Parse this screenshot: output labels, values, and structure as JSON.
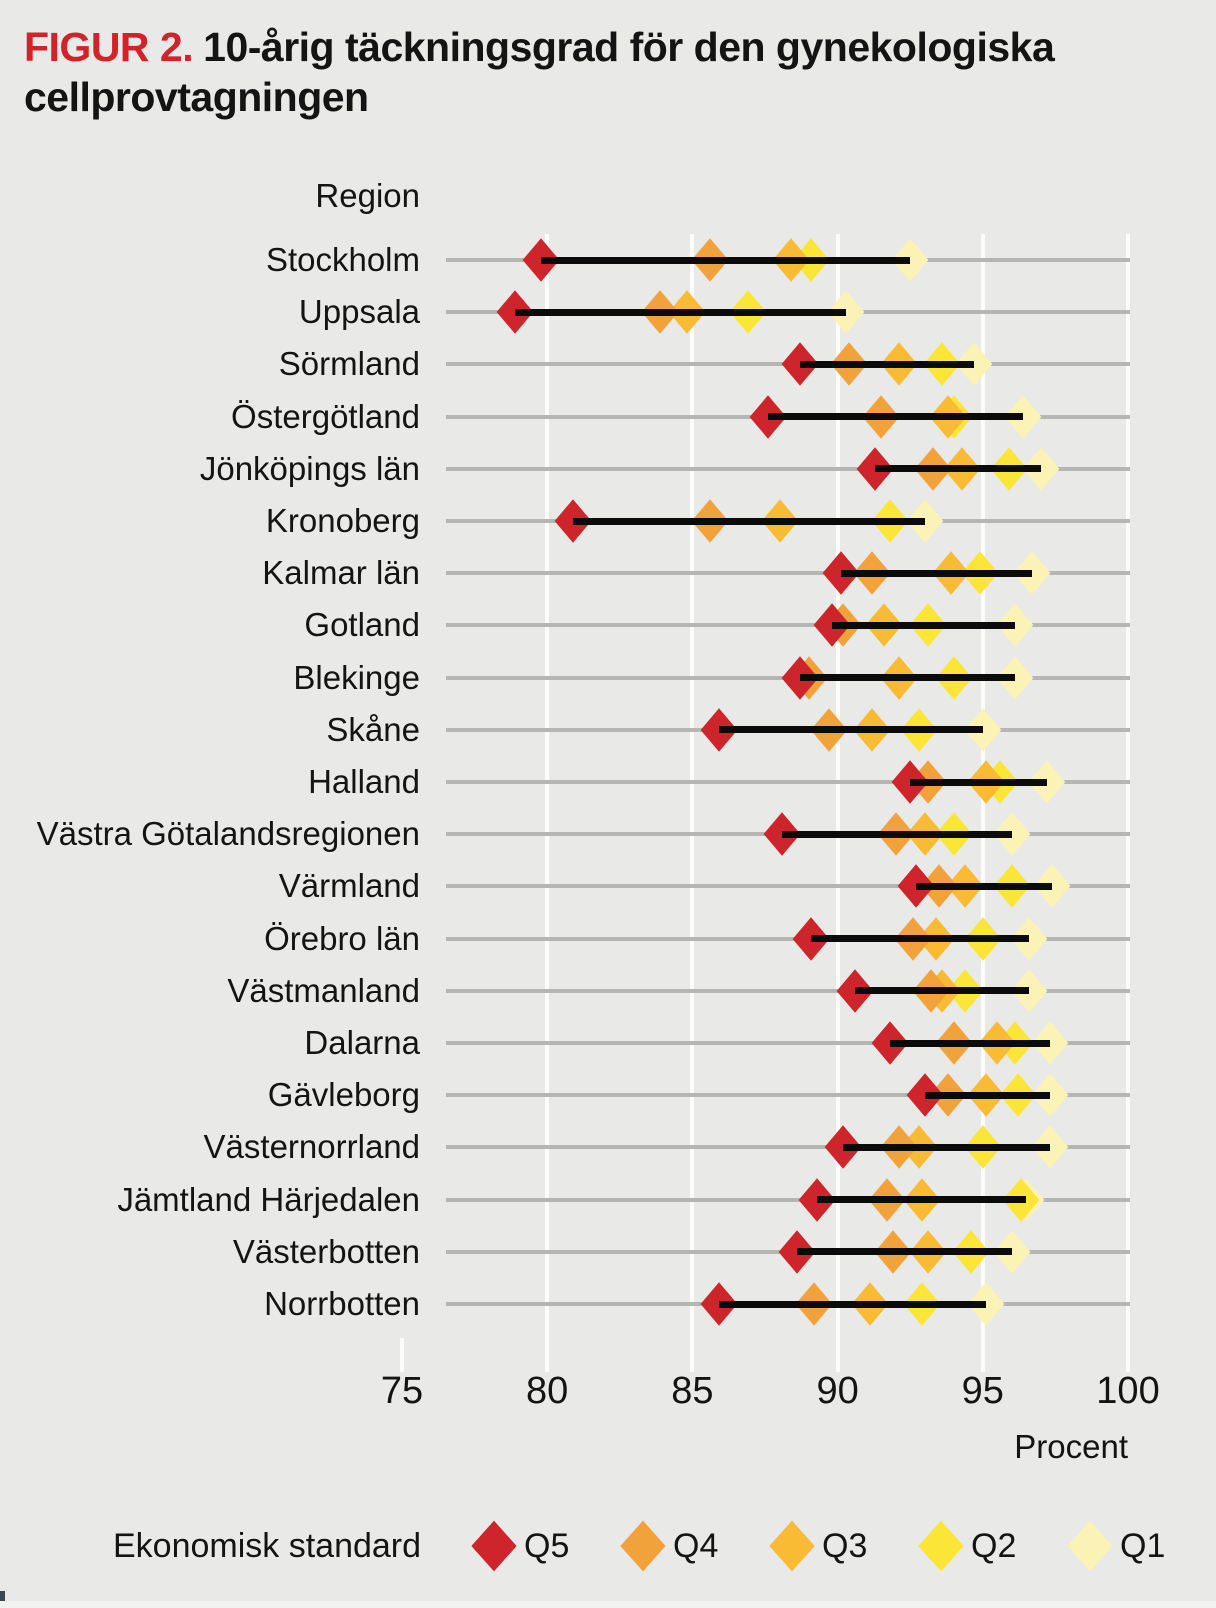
{
  "title": {
    "figure_label": "FIGUR 2.",
    "text": "10-årig täckningsgrad för den gynekologiska cellprovtagningen"
  },
  "chart_data": {
    "type": "scatter",
    "subtype": "dumbbell-dot-plot",
    "y_header": "Region",
    "x_axis": {
      "label": "Procent",
      "ticks": [
        75,
        80,
        85,
        90,
        95,
        100
      ],
      "range": [
        75,
        100
      ],
      "grid": true
    },
    "legend": {
      "label": "Ekonomisk standard",
      "position": "bottom",
      "entries": [
        {
          "name": "Q5",
          "color": "#CE242B"
        },
        {
          "name": "Q4",
          "color": "#F2A23B"
        },
        {
          "name": "Q3",
          "color": "#F8BB33"
        },
        {
          "name": "Q2",
          "color": "#FBE637"
        },
        {
          "name": "Q1",
          "color": "#FBF2B6"
        }
      ]
    },
    "series_order": [
      "Q5",
      "Q4",
      "Q3",
      "Q2",
      "Q1"
    ],
    "regions": [
      {
        "name": "Stockholm",
        "values": {
          "Q5": 79.8,
          "Q4": 85.6,
          "Q3": 88.4,
          "Q2": 89.1,
          "Q1": 92.5
        }
      },
      {
        "name": "Uppsala",
        "values": {
          "Q5": 78.9,
          "Q4": 83.9,
          "Q3": 84.8,
          "Q2": 86.9,
          "Q1": 90.3
        }
      },
      {
        "name": "Sörmland",
        "values": {
          "Q5": 88.7,
          "Q4": 90.4,
          "Q3": 92.1,
          "Q2": 93.6,
          "Q1": 94.7
        }
      },
      {
        "name": "Östergötland",
        "values": {
          "Q5": 87.6,
          "Q4": 91.5,
          "Q3": 93.8,
          "Q2": 94.0,
          "Q1": 96.4
        }
      },
      {
        "name": "Jönköpings län",
        "values": {
          "Q5": 91.3,
          "Q4": 93.3,
          "Q3": 94.3,
          "Q2": 95.9,
          "Q1": 97.0
        }
      },
      {
        "name": "Kronoberg",
        "values": {
          "Q5": 80.9,
          "Q4": 85.6,
          "Q3": 88.0,
          "Q2": 91.8,
          "Q1": 93.0
        }
      },
      {
        "name": "Kalmar län",
        "values": {
          "Q5": 90.1,
          "Q4": 91.2,
          "Q3": 93.9,
          "Q2": 94.9,
          "Q1": 96.7
        }
      },
      {
        "name": "Gotland",
        "values": {
          "Q5": 89.8,
          "Q4": 90.2,
          "Q3": 91.6,
          "Q2": 93.1,
          "Q1": 96.1
        }
      },
      {
        "name": "Blekinge",
        "values": {
          "Q5": 88.7,
          "Q4": 89.0,
          "Q3": 92.1,
          "Q2": 94.0,
          "Q1": 96.1
        }
      },
      {
        "name": "Skåne",
        "values": {
          "Q5": 85.9,
          "Q4": 89.7,
          "Q3": 91.2,
          "Q2": 92.8,
          "Q1": 95.0
        }
      },
      {
        "name": "Halland",
        "values": {
          "Q5": 92.5,
          "Q4": 93.1,
          "Q3": 95.1,
          "Q2": 95.6,
          "Q1": 97.2
        }
      },
      {
        "name": "Västra Götalandsregionen",
        "values": {
          "Q5": 88.1,
          "Q4": 92.0,
          "Q3": 93.0,
          "Q2": 94.0,
          "Q1": 96.0
        }
      },
      {
        "name": "Värmland",
        "values": {
          "Q5": 92.7,
          "Q4": 93.5,
          "Q3": 94.4,
          "Q2": 96.0,
          "Q1": 97.4
        }
      },
      {
        "name": "Örebro län",
        "values": {
          "Q5": 89.1,
          "Q4": 92.6,
          "Q3": 93.4,
          "Q2": 95.0,
          "Q1": 96.6
        }
      },
      {
        "name": "Västmanland",
        "values": {
          "Q5": 90.6,
          "Q4": 93.2,
          "Q3": 93.6,
          "Q2": 94.4,
          "Q1": 96.6
        }
      },
      {
        "name": "Dalarna",
        "values": {
          "Q5": 91.8,
          "Q4": 94.0,
          "Q3": 95.5,
          "Q2": 96.1,
          "Q1": 97.3
        }
      },
      {
        "name": "Gävleborg",
        "values": {
          "Q5": 93.0,
          "Q4": 93.8,
          "Q3": 95.1,
          "Q2": 96.2,
          "Q1": 97.3
        }
      },
      {
        "name": "Västernorrland",
        "values": {
          "Q5": 90.2,
          "Q4": 92.1,
          "Q3": 92.8,
          "Q2": 95.0,
          "Q1": 97.3
        }
      },
      {
        "name": "Jämtland Härjedalen",
        "values": {
          "Q5": 89.3,
          "Q4": 91.7,
          "Q3": 92.9,
          "Q2": 96.3,
          "Q1": 96.5
        }
      },
      {
        "name": "Västerbotten",
        "values": {
          "Q5": 88.6,
          "Q4": 91.9,
          "Q3": 93.1,
          "Q2": 94.6,
          "Q1": 96.0
        }
      },
      {
        "name": "Norrbotten",
        "values": {
          "Q5": 85.9,
          "Q4": 89.2,
          "Q3": 91.1,
          "Q2": 92.9,
          "Q1": 95.1
        }
      }
    ],
    "colors": {
      "title_accent": "#D2232A",
      "row_line": "#B5B5B3",
      "connector": "#0B0B0B",
      "background": "#E9E9E7"
    }
  }
}
